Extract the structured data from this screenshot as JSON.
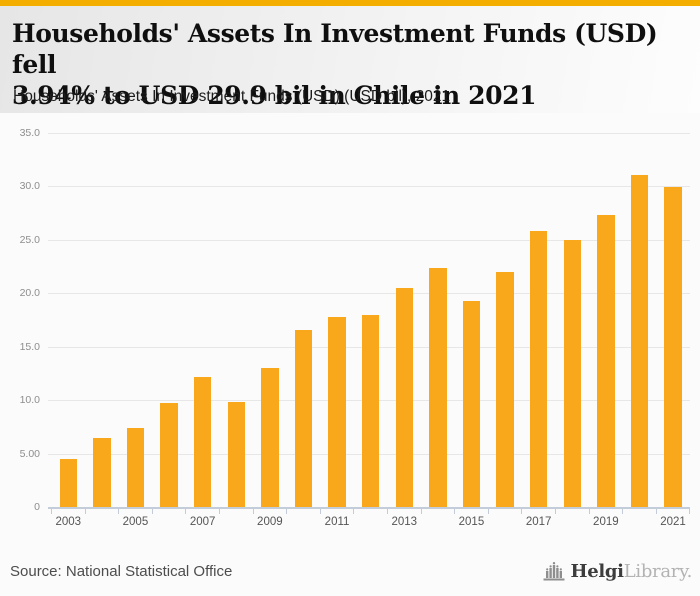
{
  "header": {
    "title_line1": "Households' Assets In Investment Funds (USD) fell",
    "title_line2": "3.94% to USD 29.9 bil in Chile in 2021",
    "subtitle": "Households' Assets In Investment Funds (USD) (USD bil), 2021"
  },
  "chart_data": {
    "type": "bar",
    "title": "Households' Assets In Investment Funds (USD) (USD bil), 2021",
    "categories": [
      "2003",
      "2004",
      "2005",
      "2006",
      "2007",
      "2008",
      "2009",
      "2010",
      "2011",
      "2012",
      "2013",
      "2014",
      "2015",
      "2016",
      "2017",
      "2018",
      "2019",
      "2020",
      "2021"
    ],
    "values": [
      4.5,
      6.5,
      7.4,
      9.7,
      12.2,
      9.8,
      13.0,
      16.6,
      17.8,
      18.0,
      20.5,
      22.4,
      19.3,
      22.0,
      25.8,
      25.0,
      27.3,
      31.1,
      29.9
    ],
    "xlabel": "",
    "ylabel": "",
    "ylim": [
      0,
      35
    ],
    "yticks": [
      {
        "value": 35,
        "label": "35.0"
      },
      {
        "value": 30,
        "label": "30.0"
      },
      {
        "value": 25,
        "label": "25.0"
      },
      {
        "value": 20,
        "label": "20.0"
      },
      {
        "value": 15,
        "label": "15.0"
      },
      {
        "value": 10,
        "label": "10.0"
      },
      {
        "value": 5,
        "label": "5.00"
      },
      {
        "value": 0,
        "label": "0"
      }
    ],
    "x_tick_labels": [
      "2003",
      "2005",
      "2007",
      "2009",
      "2011",
      "2013",
      "2015",
      "2017",
      "2019",
      "2021"
    ],
    "grid": true,
    "legend": "none",
    "bar_color": "#F9A81C"
  },
  "colors": {
    "accent_bar_top": "#F3AE00",
    "bar_orange": "#F9A81C",
    "axis_blue_gray": "#c3cdda",
    "gridline_gray": "#e7e7e7"
  },
  "footer": {
    "source": "Source: National Statistical Office",
    "logo_bold": "Helgi",
    "logo_light": "Library."
  }
}
